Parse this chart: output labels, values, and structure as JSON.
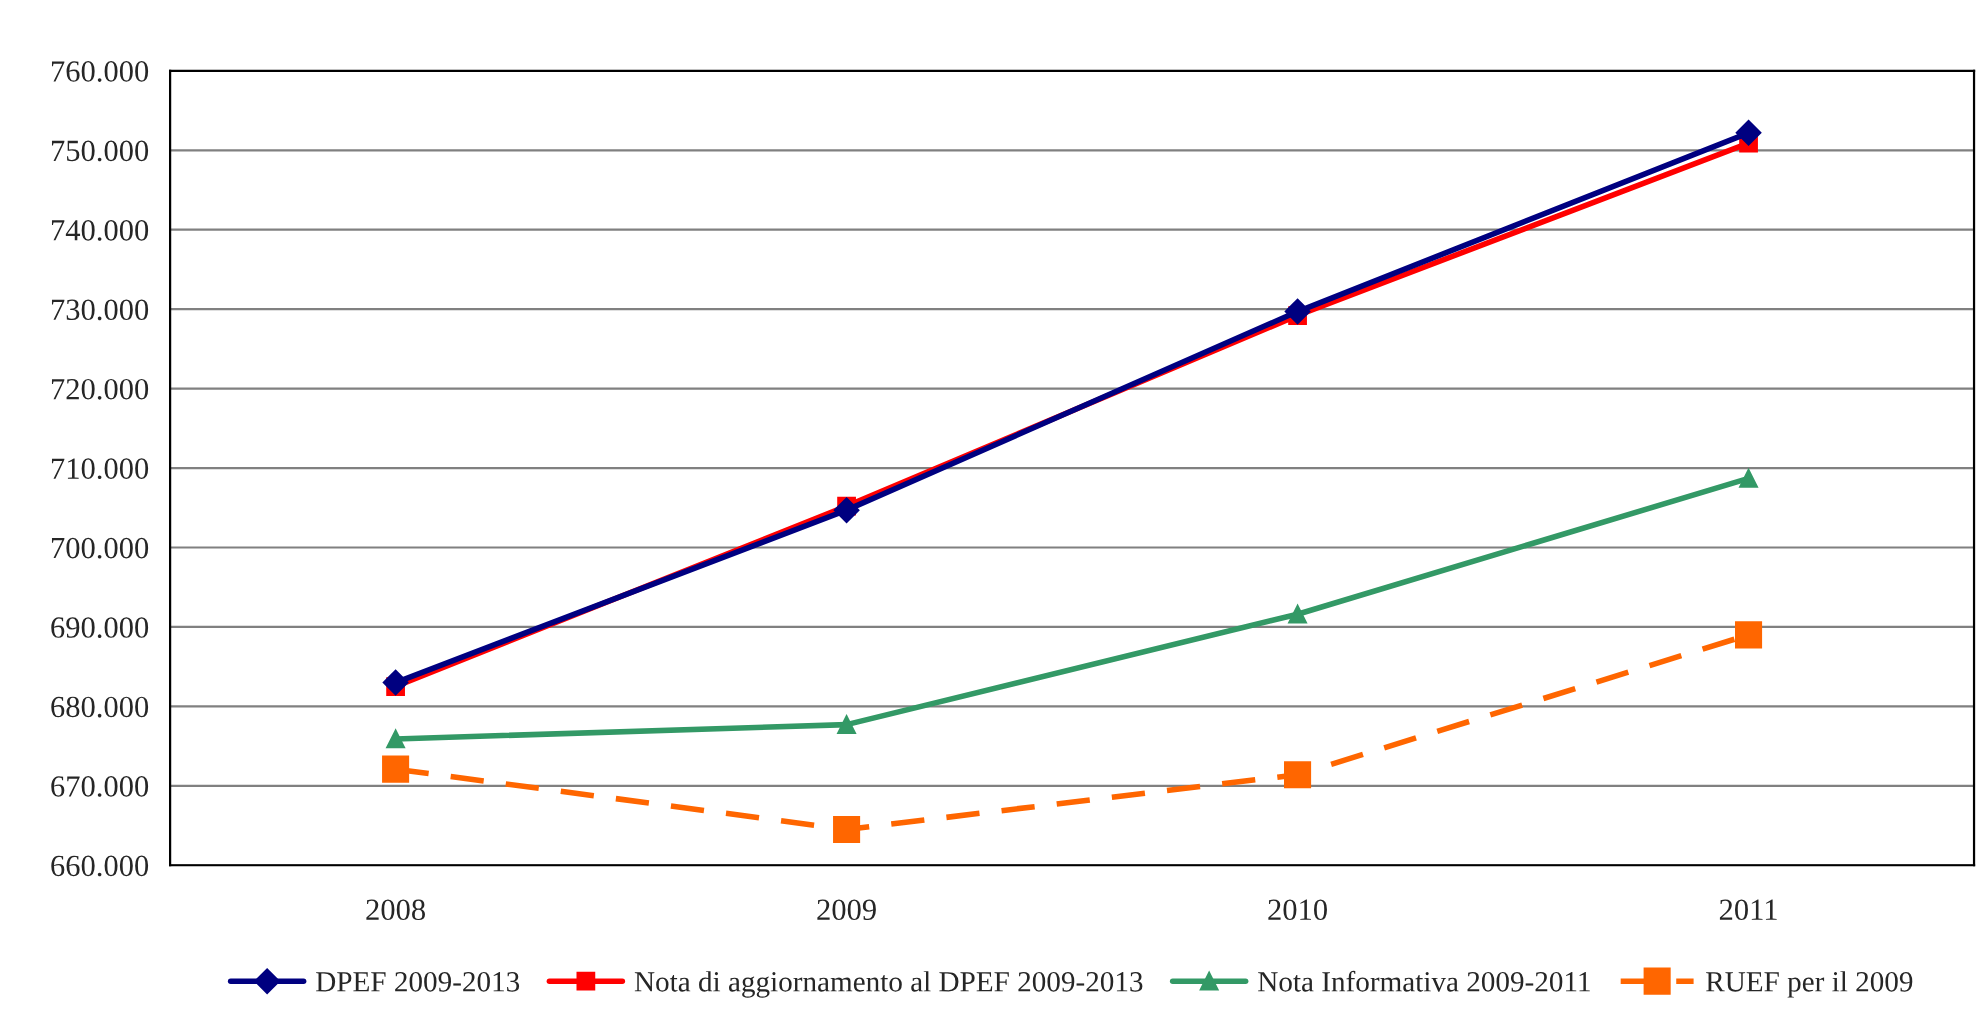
{
  "chart_data": {
    "type": "line",
    "categories": [
      "2008",
      "2009",
      "2010",
      "2011"
    ],
    "series": [
      {
        "name": "DPEF 2009-2013",
        "color": "#000080",
        "marker": "diamond",
        "line_style": "solid",
        "values": [
          683000,
          704700,
          729700,
          752200
        ]
      },
      {
        "name": "Nota di aggiornamento al DPEF 2009-2013",
        "color": "#ff0000",
        "marker": "square",
        "line_style": "solid",
        "values": [
          682500,
          705200,
          729200,
          750900
        ]
      },
      {
        "name": "Nota Informativa 2009-2011",
        "color": "#339966",
        "marker": "triangle",
        "line_style": "solid",
        "values": [
          675900,
          677700,
          691600,
          708700
        ]
      },
      {
        "name": "RUEF per il 2009",
        "color": "#ff6600",
        "marker": "square",
        "line_style": "dashed",
        "values": [
          672100,
          664500,
          671400,
          689000
        ]
      }
    ],
    "ylim": [
      660000,
      760000
    ],
    "yticks": [
      {
        "value": 660000,
        "label": "660.000"
      },
      {
        "value": 670000,
        "label": "670.000"
      },
      {
        "value": 680000,
        "label": "680.000"
      },
      {
        "value": 690000,
        "label": "690.000"
      },
      {
        "value": 700000,
        "label": "700.000"
      },
      {
        "value": 710000,
        "label": "710.000"
      },
      {
        "value": 720000,
        "label": "720.000"
      },
      {
        "value": 730000,
        "label": "730.000"
      },
      {
        "value": 740000,
        "label": "740.000"
      },
      {
        "value": 750000,
        "label": "750.000"
      },
      {
        "value": 760000,
        "label": "760.000"
      }
    ],
    "grid": "y",
    "legend": "bottom"
  }
}
